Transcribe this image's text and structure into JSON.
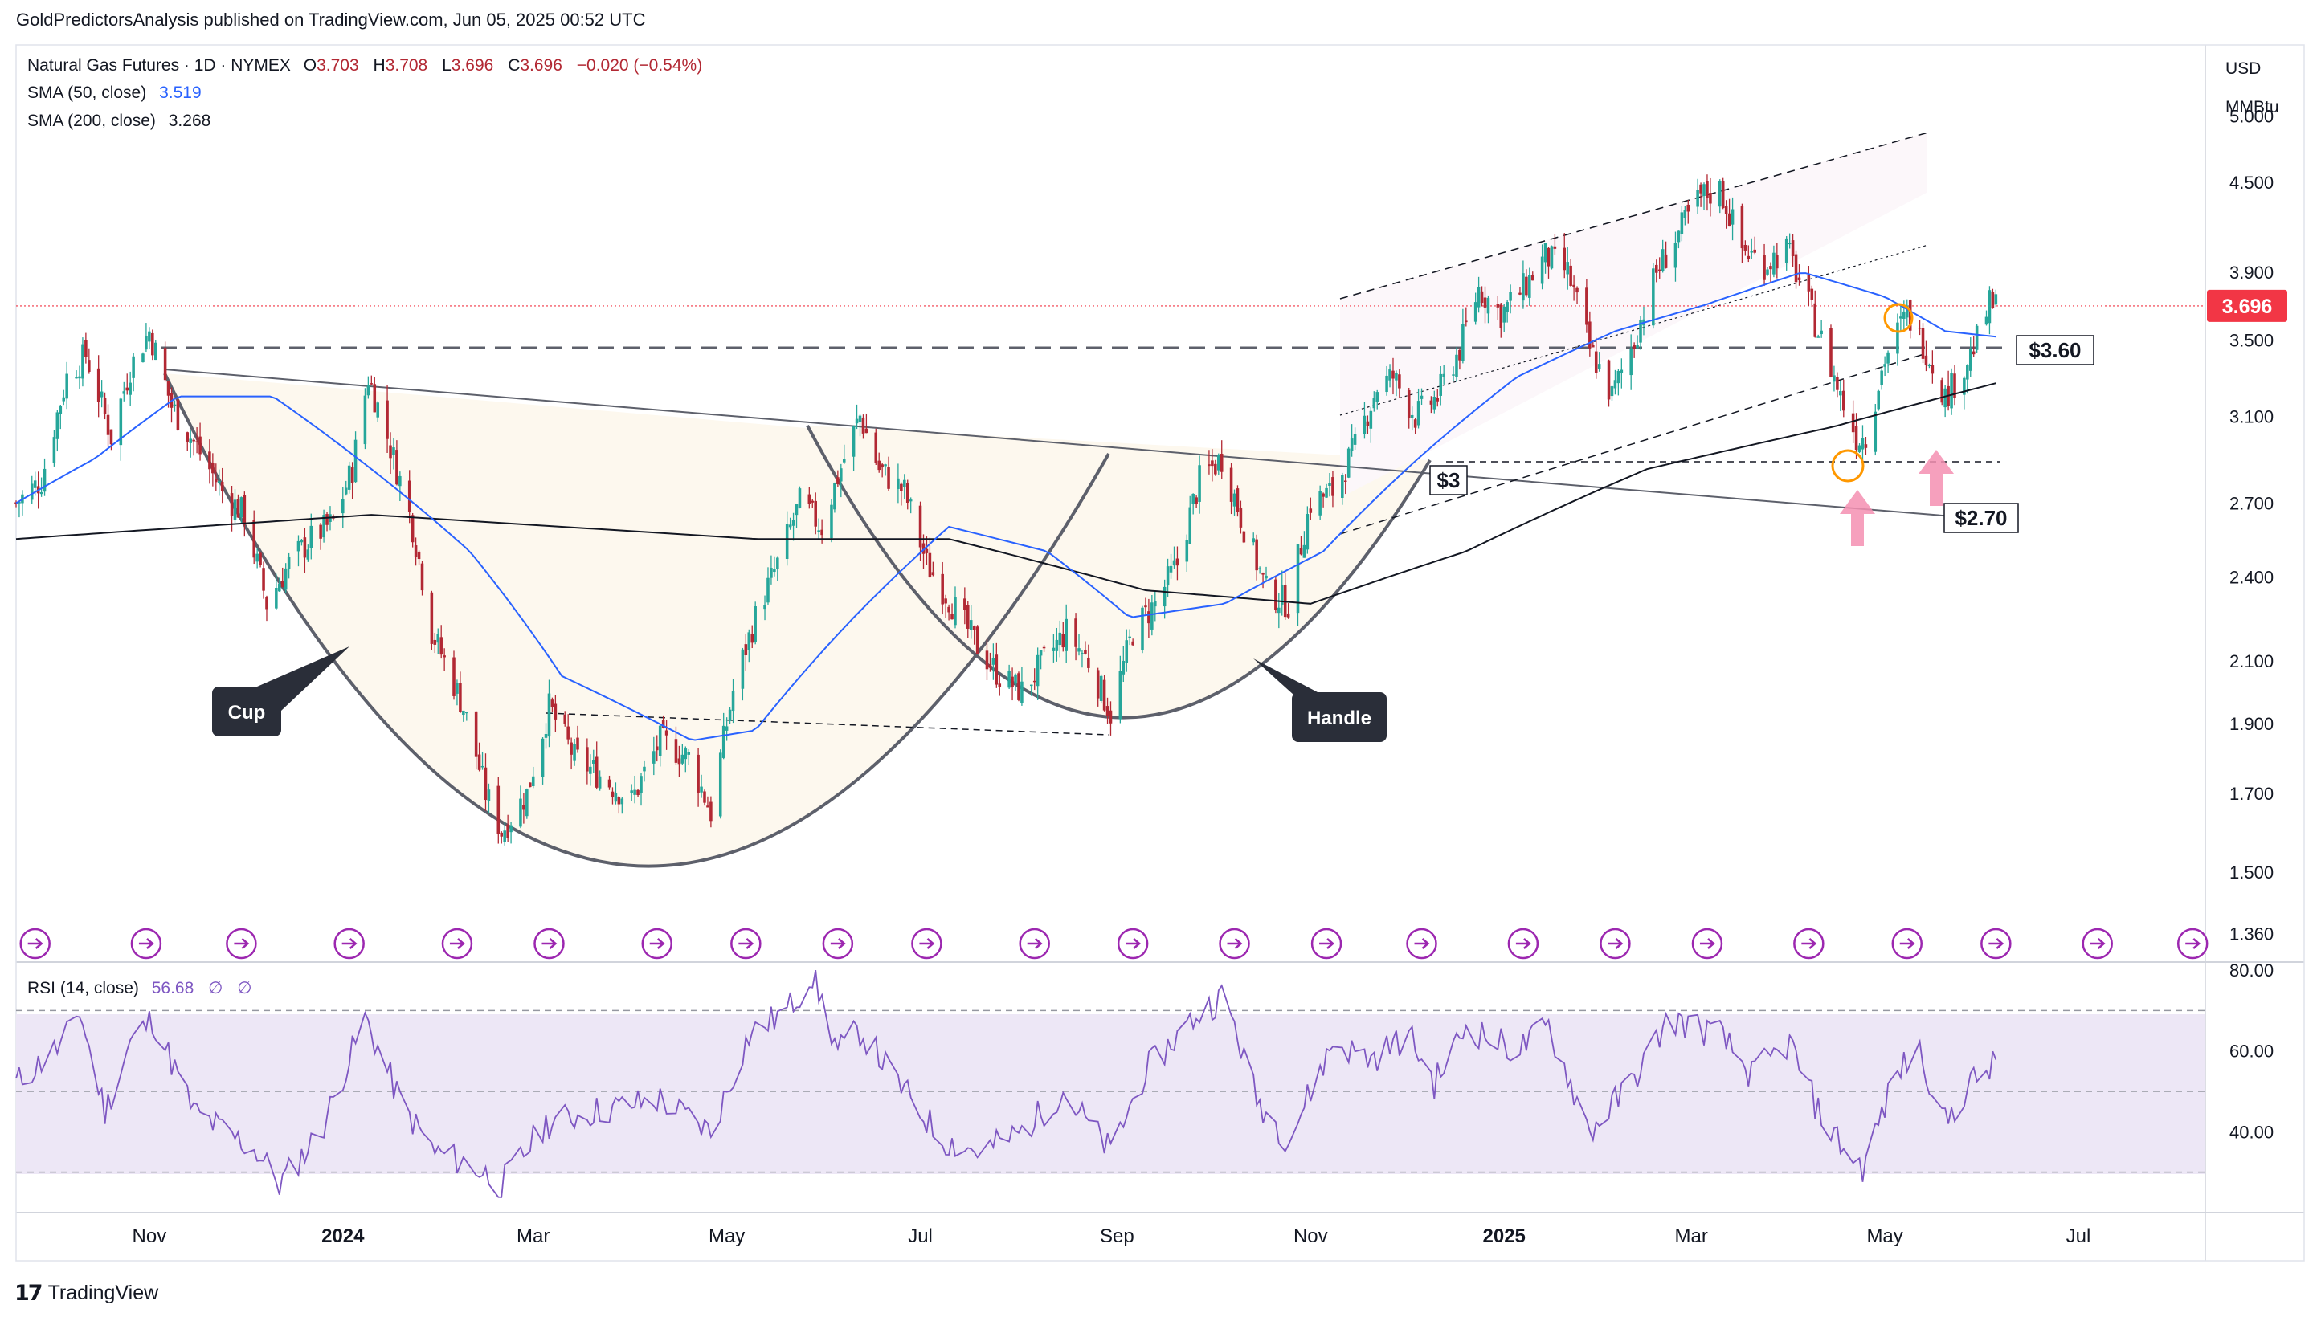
{
  "header": {
    "publisher_line": "GoldPredictorsAnalysis published on TradingView.com, Jun 05, 2025 00:52 UTC"
  },
  "legend": {
    "symbol": "Natural Gas Futures · 1D · NYMEX",
    "open_label": "O",
    "open": "3.703",
    "high_label": "H",
    "high": "3.708",
    "low_label": "L",
    "low": "3.696",
    "close_label": "C",
    "close": "3.696",
    "change": "−0.020 (−0.54%)",
    "sma50_label": "SMA (50, close)",
    "sma50_value": "3.519",
    "sma200_label": "SMA (200, close)",
    "sma200_value": "3.268",
    "rsi_label": "RSI (14, close)",
    "rsi_value": "56.68",
    "rsi_extra1": "∅",
    "rsi_extra2": "∅"
  },
  "price_axis": {
    "unit_line1": "USD",
    "unit_line2": "MMBtu",
    "current_price_label": "3.696"
  },
  "annotations": {
    "cup": "Cup",
    "handle": "Handle",
    "level_360": "$3.60",
    "level_3": "$3",
    "level_270": "$2.70"
  },
  "footer": {
    "brand": "TradingView"
  },
  "colors": {
    "up_candle": "#26a69a",
    "down_candle": "#b22833",
    "sma50": "#2962ff",
    "sma200": "#131722",
    "rsi": "#7e57c2",
    "rsi_band": "#ede7f6",
    "price_line": "#f23645",
    "arrow": "#f48fb1",
    "circle": "#ff9800",
    "cup_fill": "#fdf8ee",
    "channel_fill": "#fbf5f8"
  },
  "chart_data": [
    {
      "type": "candlestick",
      "title": "Natural Gas Futures · 1D · NYMEX",
      "ylabel": "USD / MMBtu",
      "scale": "log",
      "ylim": [
        1.3,
        5.6
      ],
      "x_range": [
        "2023-09-20",
        "2025-08-10"
      ],
      "price_ticks": [
        5.0,
        4.5,
        3.9,
        3.5,
        3.1,
        2.7,
        2.4,
        2.1,
        1.9,
        1.7,
        1.5,
        1.36
      ],
      "price_tick_labels": [
        "5.000",
        "4.500",
        "3.900",
        "3.500",
        "3.100",
        "2.700",
        "2.400",
        "2.100",
        "1.900",
        "1.700",
        "1.500",
        "1.360"
      ],
      "x_ticks": [
        {
          "date": "2023-11-01",
          "label": "Nov"
        },
        {
          "date": "2024-01-01",
          "label": "2024"
        },
        {
          "date": "2024-03-01",
          "label": "Mar"
        },
        {
          "date": "2024-05-01",
          "label": "May"
        },
        {
          "date": "2024-07-01",
          "label": "Jul"
        },
        {
          "date": "2024-09-01",
          "label": "Sep"
        },
        {
          "date": "2024-11-01",
          "label": "Nov"
        },
        {
          "date": "2025-01-01",
          "label": "2025"
        },
        {
          "date": "2025-03-01",
          "label": "Mar"
        },
        {
          "date": "2025-05-01",
          "label": "May"
        },
        {
          "date": "2025-07-01",
          "label": "Jul"
        }
      ],
      "close_anchors": [
        [
          "2023-09-20",
          2.7
        ],
        [
          "2023-09-28",
          2.8
        ],
        [
          "2023-10-06",
          3.3
        ],
        [
          "2023-10-12",
          3.42
        ],
        [
          "2023-10-20",
          3.0
        ],
        [
          "2023-10-26",
          3.35
        ],
        [
          "2023-11-01",
          3.55
        ],
        [
          "2023-11-08",
          3.15
        ],
        [
          "2023-11-16",
          2.95
        ],
        [
          "2023-11-24",
          2.75
        ],
        [
          "2023-12-01",
          2.65
        ],
        [
          "2023-12-08",
          2.3
        ],
        [
          "2023-12-15",
          2.45
        ],
        [
          "2023-12-22",
          2.55
        ],
        [
          "2023-12-29",
          2.62
        ],
        [
          "2024-01-04",
          2.85
        ],
        [
          "2024-01-09",
          3.3
        ],
        [
          "2024-01-16",
          2.95
        ],
        [
          "2024-01-23",
          2.6
        ],
        [
          "2024-01-29",
          2.2
        ],
        [
          "2024-02-02",
          2.1
        ],
        [
          "2024-02-08",
          1.95
        ],
        [
          "2024-02-15",
          1.7
        ],
        [
          "2024-02-20",
          1.6
        ],
        [
          "2024-02-28",
          1.7
        ],
        [
          "2024-03-06",
          1.95
        ],
        [
          "2024-03-14",
          1.8
        ],
        [
          "2024-03-22",
          1.75
        ],
        [
          "2024-04-01",
          1.68
        ],
        [
          "2024-04-10",
          1.85
        ],
        [
          "2024-04-19",
          1.8
        ],
        [
          "2024-04-26",
          1.65
        ],
        [
          "2024-05-03",
          2.0
        ],
        [
          "2024-05-10",
          2.25
        ],
        [
          "2024-05-17",
          2.45
        ],
        [
          "2024-05-24",
          2.7
        ],
        [
          "2024-05-31",
          2.6
        ],
        [
          "2024-06-07",
          2.9
        ],
        [
          "2024-06-12",
          3.1
        ],
        [
          "2024-06-18",
          2.85
        ],
        [
          "2024-06-26",
          2.75
        ],
        [
          "2024-07-03",
          2.45
        ],
        [
          "2024-07-11",
          2.3
        ],
        [
          "2024-07-19",
          2.15
        ],
        [
          "2024-07-26",
          2.05
        ],
        [
          "2024-08-02",
          2.0
        ],
        [
          "2024-08-09",
          2.1
        ],
        [
          "2024-08-16",
          2.2
        ],
        [
          "2024-08-23",
          2.1
        ],
        [
          "2024-08-30",
          1.93
        ],
        [
          "2024-09-06",
          2.2
        ],
        [
          "2024-09-13",
          2.3
        ],
        [
          "2024-09-20",
          2.45
        ],
        [
          "2024-09-27",
          2.8
        ],
        [
          "2024-10-04",
          2.9
        ],
        [
          "2024-10-11",
          2.6
        ],
        [
          "2024-10-18",
          2.35
        ],
        [
          "2024-10-25",
          2.3
        ],
        [
          "2024-11-01",
          2.7
        ],
        [
          "2024-11-08",
          2.75
        ],
        [
          "2024-11-15",
          2.95
        ],
        [
          "2024-11-22",
          3.25
        ],
        [
          "2024-11-27",
          3.3
        ],
        [
          "2024-12-04",
          3.1
        ],
        [
          "2024-12-11",
          3.2
        ],
        [
          "2024-12-18",
          3.45
        ],
        [
          "2024-12-24",
          3.8
        ],
        [
          "2024-12-31",
          3.65
        ],
        [
          "2025-01-07",
          3.8
        ],
        [
          "2025-01-14",
          4.0
        ],
        [
          "2025-01-21",
          3.9
        ],
        [
          "2025-01-28",
          3.45
        ],
        [
          "2025-02-04",
          3.2
        ],
        [
          "2025-02-11",
          3.5
        ],
        [
          "2025-02-18",
          3.9
        ],
        [
          "2025-02-25",
          4.15
        ],
        [
          "2025-03-04",
          4.4
        ],
        [
          "2025-03-10",
          4.45
        ],
        [
          "2025-03-17",
          4.05
        ],
        [
          "2025-03-24",
          3.95
        ],
        [
          "2025-03-31",
          4.05
        ],
        [
          "2025-04-04",
          3.85
        ],
        [
          "2025-04-10",
          3.55
        ],
        [
          "2025-04-17",
          3.2
        ],
        [
          "2025-04-22",
          3.0
        ],
        [
          "2025-04-25",
          3.0
        ],
        [
          "2025-05-01",
          3.4
        ],
        [
          "2025-05-08",
          3.65
        ],
        [
          "2025-05-14",
          3.45
        ],
        [
          "2025-05-20",
          3.2
        ],
        [
          "2025-05-26",
          3.35
        ],
        [
          "2025-05-30",
          3.5
        ],
        [
          "2025-06-03",
          3.7
        ],
        [
          "2025-06-05",
          3.696
        ]
      ],
      "sma50_anchors": [
        [
          "2023-09-20",
          2.7
        ],
        [
          "2023-10-15",
          2.9
        ],
        [
          "2023-11-10",
          3.2
        ],
        [
          "2023-12-10",
          3.2
        ],
        [
          "2024-01-10",
          2.85
        ],
        [
          "2024-02-10",
          2.5
        ],
        [
          "2024-03-10",
          2.05
        ],
        [
          "2024-04-20",
          1.85
        ],
        [
          "2024-05-10",
          1.88
        ],
        [
          "2024-06-10",
          2.25
        ],
        [
          "2024-07-10",
          2.6
        ],
        [
          "2024-08-10",
          2.5
        ],
        [
          "2024-09-05",
          2.25
        ],
        [
          "2024-10-05",
          2.3
        ],
        [
          "2024-11-05",
          2.5
        ],
        [
          "2024-12-05",
          2.9
        ],
        [
          "2025-01-05",
          3.3
        ],
        [
          "2025-02-05",
          3.55
        ],
        [
          "2025-03-05",
          3.7
        ],
        [
          "2025-04-05",
          3.9
        ],
        [
          "2025-05-01",
          3.75
        ],
        [
          "2025-05-20",
          3.55
        ],
        [
          "2025-06-05",
          3.519
        ]
      ],
      "sma200_anchors": [
        [
          "2023-09-20",
          2.55
        ],
        [
          "2023-11-15",
          2.6
        ],
        [
          "2024-01-10",
          2.65
        ],
        [
          "2024-03-10",
          2.6
        ],
        [
          "2024-05-10",
          2.55
        ],
        [
          "2024-07-10",
          2.55
        ],
        [
          "2024-09-10",
          2.35
        ],
        [
          "2024-11-01",
          2.3
        ],
        [
          "2024-12-20",
          2.5
        ],
        [
          "2025-02-15",
          2.85
        ],
        [
          "2025-04-15",
          3.05
        ],
        [
          "2025-06-05",
          3.268
        ]
      ],
      "levels": [
        {
          "label": "$3.60",
          "value": 3.6,
          "style": "dashed"
        },
        {
          "label": "$3",
          "value": 3.0,
          "style": "dashed"
        }
      ]
    },
    {
      "type": "line",
      "title": "RSI (14, close)",
      "ylim": [
        20,
        82
      ],
      "y_ticks": [
        80,
        60,
        40
      ],
      "y_tick_labels": [
        "80.00",
        "60.00",
        "40.00"
      ],
      "bands": [
        70,
        50,
        30
      ],
      "rsi_anchors": [
        [
          "2023-09-20",
          52
        ],
        [
          "2023-10-05",
          62
        ],
        [
          "2023-10-10",
          70
        ],
        [
          "2023-10-18",
          45
        ],
        [
          "2023-10-26",
          62
        ],
        [
          "2023-11-02",
          68
        ],
        [
          "2023-11-15",
          45
        ],
        [
          "2023-12-05",
          35
        ],
        [
          "2023-12-12",
          27
        ],
        [
          "2023-12-25",
          40
        ],
        [
          "2024-01-08",
          68
        ],
        [
          "2024-01-20",
          46
        ],
        [
          "2024-01-30",
          35
        ],
        [
          "2024-02-10",
          32
        ],
        [
          "2024-02-20",
          27
        ],
        [
          "2024-03-05",
          42
        ],
        [
          "2024-03-20",
          45
        ],
        [
          "2024-04-10",
          48
        ],
        [
          "2024-04-26",
          40
        ],
        [
          "2024-05-08",
          64
        ],
        [
          "2024-05-20",
          70
        ],
        [
          "2024-05-28",
          79
        ],
        [
          "2024-06-05",
          60
        ],
        [
          "2024-06-12",
          65
        ],
        [
          "2024-06-26",
          50
        ],
        [
          "2024-07-08",
          38
        ],
        [
          "2024-07-20",
          35
        ],
        [
          "2024-08-02",
          40
        ],
        [
          "2024-08-15",
          50
        ],
        [
          "2024-08-30",
          35
        ],
        [
          "2024-09-10",
          55
        ],
        [
          "2024-09-25",
          68
        ],
        [
          "2024-10-05",
          74
        ],
        [
          "2024-10-15",
          48
        ],
        [
          "2024-10-25",
          38
        ],
        [
          "2024-11-08",
          62
        ],
        [
          "2024-11-20",
          58
        ],
        [
          "2024-12-02",
          64
        ],
        [
          "2024-12-10",
          52
        ],
        [
          "2024-12-20",
          66
        ],
        [
          "2025-01-05",
          60
        ],
        [
          "2025-01-15",
          66
        ],
        [
          "2025-01-28",
          40
        ],
        [
          "2025-02-10",
          52
        ],
        [
          "2025-02-22",
          68
        ],
        [
          "2025-03-10",
          64
        ],
        [
          "2025-03-20",
          54
        ],
        [
          "2025-04-01",
          62
        ],
        [
          "2025-04-10",
          45
        ],
        [
          "2025-04-18",
          36
        ],
        [
          "2025-04-24",
          31
        ],
        [
          "2025-05-05",
          55
        ],
        [
          "2025-05-12",
          60
        ],
        [
          "2025-05-20",
          42
        ],
        [
          "2025-05-28",
          52
        ],
        [
          "2025-06-05",
          56.68
        ]
      ]
    }
  ]
}
